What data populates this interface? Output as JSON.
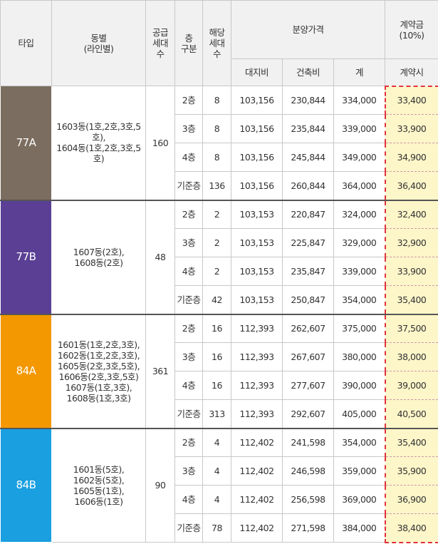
{
  "header": {
    "type": "타입",
    "dong": [
      "동별",
      "(라인별)"
    ],
    "supply": [
      "공급",
      "세대",
      "수"
    ],
    "floor": [
      "층",
      "구분"
    ],
    "units": [
      "해당",
      "세대",
      "수"
    ],
    "price": "분양가격",
    "land": "대지비",
    "build": "건축비",
    "total": "계",
    "deposit": [
      "계약금",
      "(10%)"
    ],
    "deposit_sub": "계약시"
  },
  "groups": [
    {
      "type": "77A",
      "color": "#7b6d5f",
      "dong": [
        "1603동(1호,2호,3호,5호),",
        "1604동(1호,2호,3호,5호)"
      ],
      "supply": "160",
      "rows": [
        [
          "2층",
          "8",
          "103,156",
          "230,844",
          "334,000",
          "33,400"
        ],
        [
          "3층",
          "8",
          "103,156",
          "235,844",
          "339,000",
          "33,900"
        ],
        [
          "4층",
          "8",
          "103,156",
          "245,844",
          "349,000",
          "34,900"
        ],
        [
          "기준층",
          "136",
          "103,156",
          "260,844",
          "364,000",
          "36,400"
        ]
      ]
    },
    {
      "type": "77B",
      "color": "#5a3f95",
      "dong": [
        "1607동(2호),",
        "1608동(2호)"
      ],
      "supply": "48",
      "rows": [
        [
          "2층",
          "2",
          "103,153",
          "220,847",
          "324,000",
          "32,400"
        ],
        [
          "3층",
          "2",
          "103,153",
          "225,847",
          "329,000",
          "32,900"
        ],
        [
          "4층",
          "2",
          "103,153",
          "235,847",
          "339,000",
          "33,900"
        ],
        [
          "기준층",
          "42",
          "103,153",
          "250,847",
          "354,000",
          "35,400"
        ]
      ]
    },
    {
      "type": "84A",
      "color": "#f39800",
      "dong": [
        "1601동(1호,2호,3호),",
        "1602동(1호,2호,3호),",
        "1605동(2호,3호,5호),",
        "1606동(2호,3호,5호)",
        "1607동(1호,3호),",
        "1608동(1호,3호)"
      ],
      "supply": "361",
      "rows": [
        [
          "2층",
          "16",
          "112,393",
          "262,607",
          "375,000",
          "37,500"
        ],
        [
          "3층",
          "16",
          "112,393",
          "267,607",
          "380,000",
          "38,000"
        ],
        [
          "4층",
          "16",
          "112,393",
          "277,607",
          "390,000",
          "39,000"
        ],
        [
          "기준층",
          "313",
          "112,393",
          "292,607",
          "405,000",
          "40,500"
        ]
      ]
    },
    {
      "type": "84B",
      "color": "#1a9fe0",
      "dong": [
        "1601동(5호),",
        "1602동(5호),",
        "1605동(1호),",
        "1606동(1호)"
      ],
      "supply": "90",
      "rows": [
        [
          "2층",
          "4",
          "112,402",
          "241,598",
          "354,000",
          "35,400"
        ],
        [
          "3층",
          "4",
          "112,402",
          "246,598",
          "359,000",
          "35,900"
        ],
        [
          "4층",
          "4",
          "112,402",
          "256,598",
          "369,000",
          "36,900"
        ],
        [
          "기준층",
          "78",
          "112,402",
          "271,598",
          "384,000",
          "38,400"
        ]
      ]
    }
  ]
}
